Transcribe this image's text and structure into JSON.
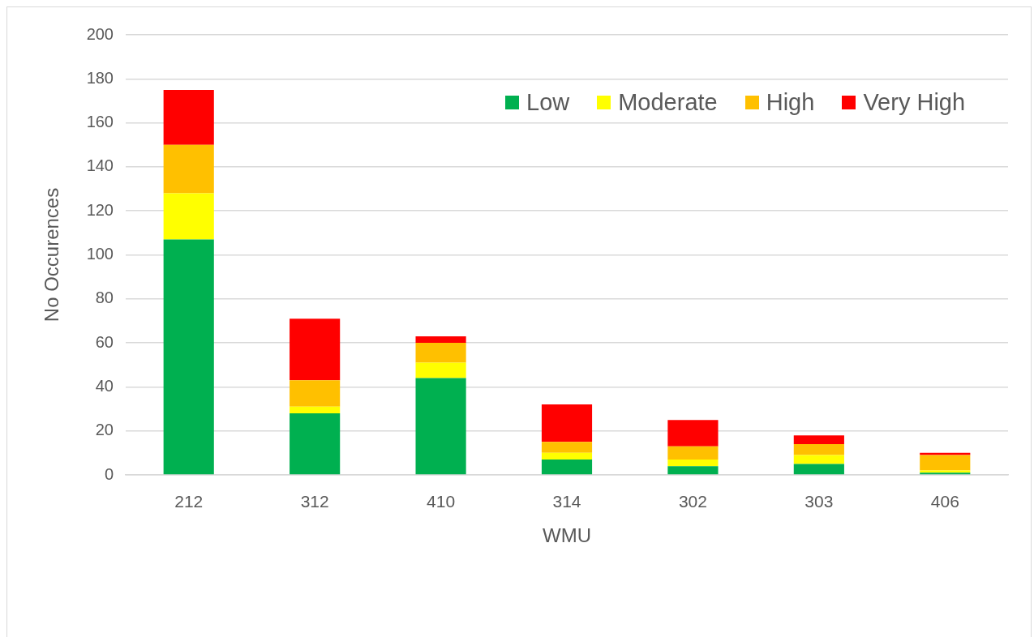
{
  "chart_data": {
    "type": "bar",
    "xlabel": "WMU",
    "ylabel": "No Occurences",
    "categories": [
      "212",
      "312",
      "410",
      "314",
      "302",
      "303",
      "406"
    ],
    "series": [
      {
        "name": "Low",
        "color": "#00b050",
        "values": [
          107,
          28,
          44,
          7,
          4,
          5,
          1
        ]
      },
      {
        "name": "Moderate",
        "color": "#ffff00",
        "values": [
          21,
          3,
          7,
          3,
          3,
          4,
          1
        ]
      },
      {
        "name": "High",
        "color": "#ffc000",
        "values": [
          22,
          12,
          9,
          5,
          6,
          5,
          7
        ]
      },
      {
        "name": "Very High",
        "color": "#ff0000",
        "values": [
          25,
          28,
          3,
          17,
          12,
          4,
          1
        ]
      }
    ],
    "stacked": true,
    "ylim": [
      0,
      200
    ],
    "yticks": [
      0,
      20,
      40,
      60,
      80,
      100,
      120,
      140,
      160,
      180,
      200
    ],
    "grid": "y",
    "legend": "top right"
  }
}
